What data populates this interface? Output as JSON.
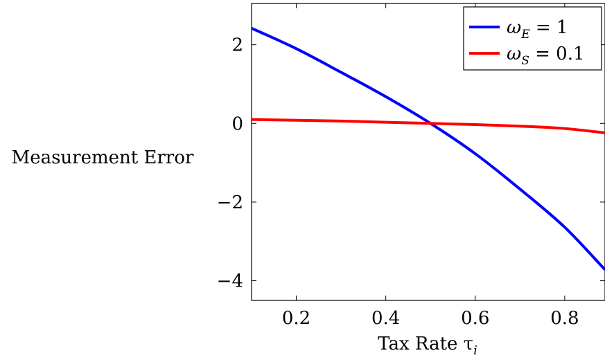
{
  "chart_data": {
    "type": "line",
    "xlabel": "Tax Rate τ",
    "xlabel_sub": "i",
    "ylabel": "Measurement Error",
    "xlim": [
      0.1,
      0.89
    ],
    "ylim": [
      -4.5,
      3.05
    ],
    "xticks": [
      0.2,
      0.4,
      0.6,
      0.8
    ],
    "xtick_labels": [
      "0.2",
      "0.4",
      "0.6",
      "0.8"
    ],
    "yticks": [
      2,
      0,
      -2,
      -4
    ],
    "ytick_labels": [
      "2",
      "0",
      "−2",
      "−4"
    ],
    "grid": false,
    "legend_position": "top-right",
    "series": [
      {
        "name": "ω_E = 1",
        "legend_main": "ω",
        "legend_sub": "E",
        "legend_value": " = 1",
        "color": "#0000ff",
        "x": [
          0.1,
          0.2,
          0.3,
          0.4,
          0.5,
          0.6,
          0.7,
          0.8,
          0.89
        ],
        "y": [
          2.42,
          1.9,
          1.3,
          0.68,
          0.0,
          -0.77,
          -1.67,
          -2.64,
          -3.72
        ]
      },
      {
        "name": "ω_S = 0.1",
        "legend_main": "ω",
        "legend_sub": "S",
        "legend_value": " = 0.1",
        "color": "#ff0000",
        "x": [
          0.1,
          0.2,
          0.3,
          0.4,
          0.5,
          0.6,
          0.7,
          0.8,
          0.89
        ],
        "y": [
          0.1,
          0.08,
          0.06,
          0.03,
          0.0,
          -0.03,
          -0.07,
          -0.13,
          -0.24
        ]
      }
    ]
  }
}
